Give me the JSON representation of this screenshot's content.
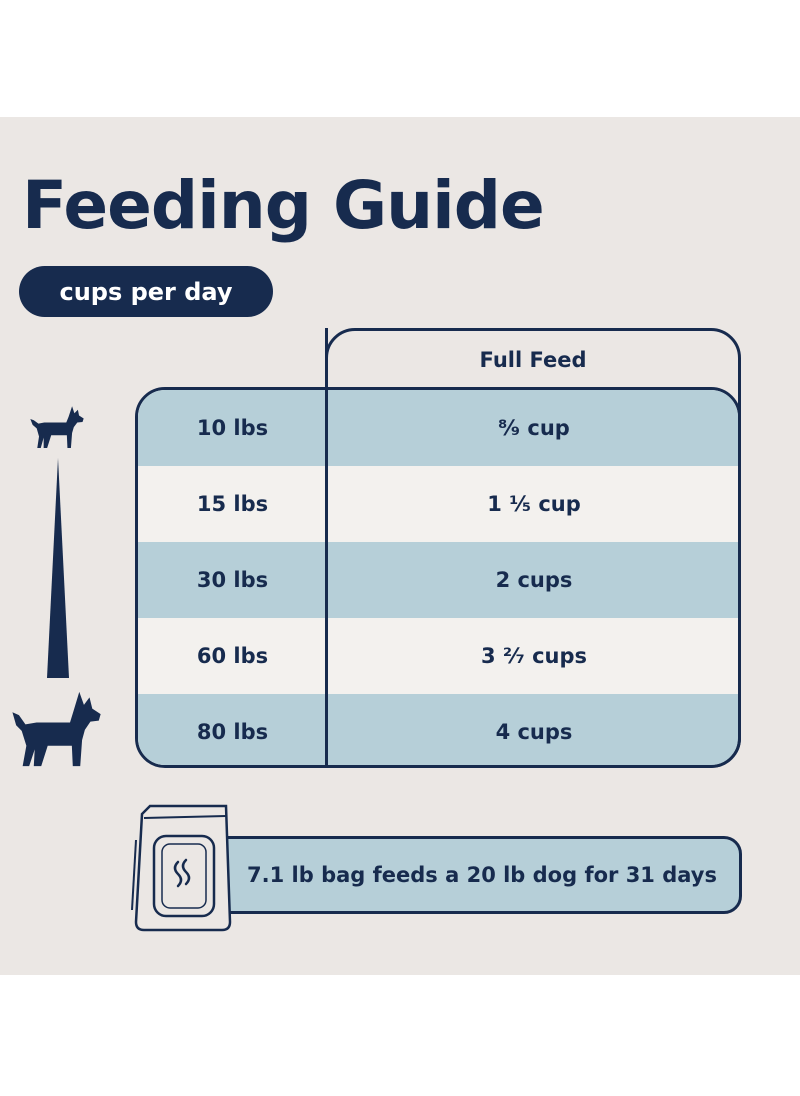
{
  "title": "Feeding Guide",
  "subtitle_pill": "cups per day",
  "table": {
    "column_header": "Full Feed",
    "rows": [
      {
        "weight": "10 lbs",
        "feed": "⁸⁄₉ cup"
      },
      {
        "weight": "15 lbs",
        "feed": "1 ¹⁄₅ cup"
      },
      {
        "weight": "30 lbs",
        "feed": "2 cups"
      },
      {
        "weight": "60 lbs",
        "feed": "3 ²⁄₇ cups"
      },
      {
        "weight": "80 lbs",
        "feed": "4 cups"
      }
    ]
  },
  "note": "7.1 lb bag feeds a 20 lb dog for 31 days",
  "icons": {
    "small_dog": "small-dog-icon",
    "large_dog": "large-dog-icon",
    "size_scale": "size-wedge-icon",
    "food_bag": "food-bag-icon"
  },
  "colors": {
    "navy": "#172b4e",
    "panel_bg": "#ebe7e4",
    "row_shade": "#b6cfd8",
    "row_light": "#f3f1ee"
  }
}
